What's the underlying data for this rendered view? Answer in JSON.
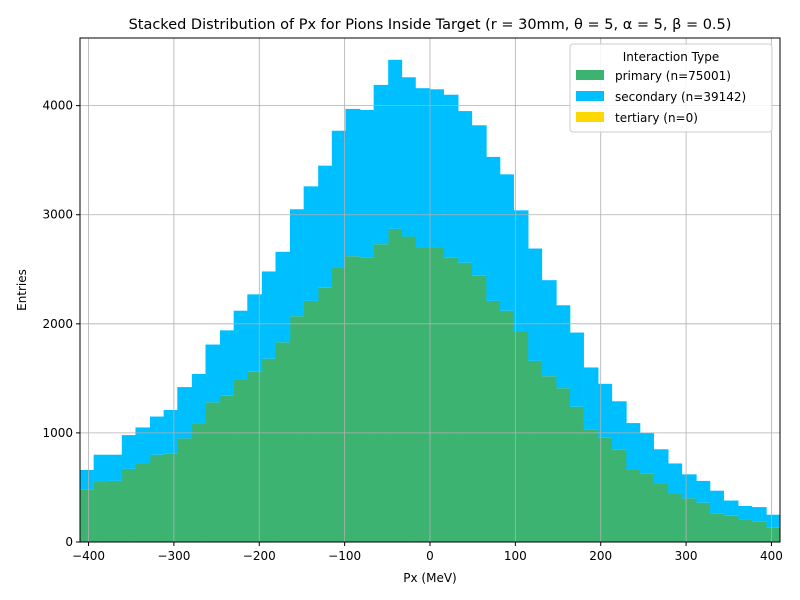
{
  "chart_data": {
    "type": "bar",
    "stacked": true,
    "title": "Stacked Distribution of Px for Pions Inside Target (r = 30mm, θ = 5, α = 5, β = 0.5)",
    "xlabel": "Px (MeV)",
    "ylabel": "Entries",
    "xlim": [
      -410,
      410
    ],
    "ylim": [
      0,
      4620
    ],
    "grid": true,
    "x_ticks": [
      -400,
      -300,
      -200,
      -100,
      0,
      100,
      200,
      300,
      400
    ],
    "y_ticks": [
      0,
      1000,
      2000,
      3000,
      4000
    ],
    "bin_edges": [
      -410,
      -394,
      -378,
      -361,
      -345,
      -328,
      -312,
      -296,
      -279,
      -263,
      -246,
      -230,
      -214,
      -197,
      -181,
      -164,
      -148,
      -131,
      -115,
      -99,
      -82,
      -66,
      -49,
      -33,
      -17,
      0,
      16,
      33,
      49,
      66,
      82,
      98,
      115,
      131,
      148,
      164,
      180,
      197,
      213,
      230,
      246,
      262,
      279,
      295,
      312,
      328,
      344,
      361,
      377,
      394,
      410
    ],
    "legend": {
      "title": "Interaction Type",
      "position": "upper-right"
    },
    "series": [
      {
        "name": "primary (n=75001)",
        "color": "#3cb371",
        "values": [
          480,
          550,
          560,
          670,
          720,
          800,
          810,
          950,
          1090,
          1280,
          1340,
          1490,
          1560,
          1680,
          1830,
          2070,
          2210,
          2330,
          2520,
          2620,
          2610,
          2730,
          2870,
          2800,
          2700,
          2700,
          2610,
          2560,
          2440,
          2210,
          2120,
          1930,
          1660,
          1520,
          1410,
          1240,
          1030,
          960,
          850,
          660,
          630,
          540,
          440,
          400,
          360,
          260,
          240,
          210,
          190,
          130
        ]
      },
      {
        "name": "secondary (n=39142)",
        "color": "#00bfff",
        "values": [
          180,
          250,
          240,
          310,
          330,
          350,
          400,
          470,
          450,
          530,
          600,
          630,
          710,
          800,
          830,
          980,
          1050,
          1120,
          1250,
          1350,
          1350,
          1460,
          1550,
          1460,
          1460,
          1450,
          1490,
          1390,
          1380,
          1320,
          1250,
          1110,
          1030,
          880,
          760,
          680,
          570,
          490,
          440,
          430,
          370,
          310,
          280,
          220,
          200,
          210,
          140,
          120,
          130,
          120
        ]
      },
      {
        "name": "tertiary (n=0)",
        "color": "#ffd700",
        "values": [
          0,
          0,
          0,
          0,
          0,
          0,
          0,
          0,
          0,
          0,
          0,
          0,
          0,
          0,
          0,
          0,
          0,
          0,
          0,
          0,
          0,
          0,
          0,
          0,
          0,
          0,
          0,
          0,
          0,
          0,
          0,
          0,
          0,
          0,
          0,
          0,
          0,
          0,
          0,
          0,
          0,
          0,
          0,
          0,
          0,
          0,
          0,
          0,
          0,
          0
        ]
      }
    ]
  }
}
